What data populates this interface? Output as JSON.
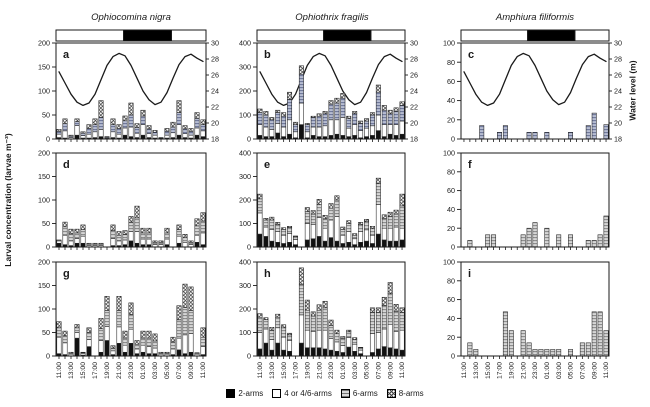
{
  "figure": {
    "y_axis_label": "Larval concentration (larvae m⁻³)",
    "right_axis_label": "Water level (m)",
    "columns": [
      {
        "title": "Ophiocomina nigra"
      },
      {
        "title": "Ophiothrix fragilis"
      },
      {
        "title": "Amphiura filiformis"
      }
    ],
    "legend": [
      {
        "key": "two",
        "label": "2-arms"
      },
      {
        "key": "four",
        "label": "4 or 4/6-arms"
      },
      {
        "key": "six",
        "label": "6-arms"
      },
      {
        "key": "eight",
        "label": "8-arms"
      }
    ]
  },
  "colors": {
    "axis": "#1a1a1a",
    "bar_stroke": "#222222",
    "two_fill": "#111111",
    "four_fill": "#ffffff",
    "six_fill_top_row": "#b7bdd2",
    "six_fill": "#d7d7d7",
    "night_fill": "#000000",
    "day_fill": "#ffffff"
  },
  "chart_data": {
    "type": "bar",
    "stacked": true,
    "x_hours": 25,
    "x_tick_labels": [
      "11:00",
      "13:00",
      "15:00",
      "17:00",
      "19:00",
      "21:00",
      "23:00",
      "01:00",
      "03:00",
      "05:00",
      "07:00",
      "09:00",
      "11:00"
    ],
    "water_axis": {
      "ylim": [
        18,
        30
      ],
      "yticks": [
        18,
        20,
        22,
        24,
        26,
        28,
        30
      ],
      "label": "Water level (m)"
    },
    "water_level": [
      26.4,
      25.0,
      23.6,
      22.6,
      22.2,
      22.5,
      23.6,
      25.4,
      27.2,
      28.3,
      28.7,
      28.4,
      27.2,
      25.6,
      24.0,
      22.9,
      22.3,
      22.6,
      23.8,
      25.6,
      27.3,
      28.3,
      28.6,
      28.1,
      27.7
    ],
    "day_night": [
      {
        "phase": "day",
        "from": 0.0,
        "to": 0.45
      },
      {
        "phase": "night",
        "from": 0.45,
        "to": 0.77
      },
      {
        "phase": "day",
        "from": 0.77,
        "to": 1.0
      }
    ],
    "panels": [
      {
        "id": "a",
        "col": 0,
        "row": 0,
        "ylim": [
          0,
          200
        ],
        "yticks": [
          0,
          50,
          100,
          150,
          200
        ],
        "series": {
          "two": [
            3,
            2,
            0,
            8,
            2,
            2,
            3,
            5,
            0,
            3,
            2,
            8,
            5,
            3,
            8,
            3,
            2,
            0,
            2,
            3,
            8,
            3,
            2,
            8,
            5
          ],
          "four": [
            7,
            15,
            3,
            20,
            5,
            8,
            12,
            15,
            2,
            12,
            8,
            15,
            20,
            9,
            22,
            8,
            6,
            1,
            6,
            10,
            22,
            8,
            6,
            15,
            12
          ],
          "six": [
            6,
            15,
            3,
            8,
            5,
            12,
            15,
            25,
            2,
            15,
            12,
            15,
            25,
            12,
            18,
            10,
            6,
            1,
            8,
            12,
            25,
            10,
            8,
            20,
            13
          ],
          "eight": [
            4,
            10,
            2,
            6,
            3,
            8,
            12,
            35,
            1,
            12,
            8,
            10,
            25,
            8,
            12,
            7,
            4,
            1,
            6,
            10,
            25,
            7,
            6,
            12,
            10
          ]
        }
      },
      {
        "id": "b",
        "col": 1,
        "row": 0,
        "ylim": [
          0,
          400
        ],
        "yticks": [
          0,
          100,
          200,
          300,
          400
        ],
        "series": {
          "two": [
            15,
            10,
            10,
            25,
            10,
            20,
            5,
            60,
            5,
            15,
            10,
            10,
            15,
            20,
            15,
            10,
            15,
            5,
            10,
            15,
            35,
            10,
            20,
            15,
            20
          ],
          "four": [
            45,
            40,
            30,
            40,
            40,
            60,
            25,
            90,
            25,
            35,
            40,
            45,
            65,
            60,
            75,
            35,
            45,
            30,
            35,
            40,
            65,
            50,
            40,
            45,
            55
          ],
          "six": [
            50,
            50,
            40,
            45,
            45,
            85,
            30,
            120,
            30,
            40,
            45,
            50,
            65,
            70,
            80,
            40,
            45,
            30,
            30,
            45,
            95,
            60,
            45,
            55,
            65
          ],
          "eight": [
            15,
            15,
            10,
            10,
            15,
            30,
            10,
            35,
            5,
            5,
            10,
            10,
            15,
            20,
            20,
            10,
            10,
            10,
            10,
            10,
            30,
            20,
            15,
            15,
            15
          ]
        }
      },
      {
        "id": "c",
        "col": 2,
        "row": 0,
        "ylim": [
          0,
          100
        ],
        "yticks": [
          0,
          20,
          40,
          60,
          80,
          100
        ],
        "series": {
          "six": [
            0,
            0,
            0,
            14,
            0,
            0,
            7,
            14,
            0,
            0,
            0,
            7,
            7,
            0,
            7,
            0,
            0,
            0,
            7,
            0,
            0,
            14,
            27,
            0,
            15
          ]
        }
      },
      {
        "id": "d",
        "col": 0,
        "row": 1,
        "ylim": [
          0,
          200
        ],
        "yticks": [
          0,
          50,
          100,
          150,
          200
        ],
        "series": {
          "two": [
            8,
            5,
            3,
            8,
            8,
            0,
            0,
            0,
            0,
            3,
            3,
            5,
            13,
            8,
            5,
            5,
            0,
            0,
            5,
            0,
            8,
            0,
            0,
            10,
            5
          ],
          "four": [
            5,
            20,
            10,
            10,
            15,
            3,
            3,
            3,
            0,
            15,
            10,
            10,
            20,
            25,
            12,
            12,
            5,
            5,
            12,
            0,
            15,
            10,
            5,
            15,
            25
          ],
          "six": [
            2,
            18,
            15,
            12,
            14,
            3,
            3,
            3,
            0,
            17,
            12,
            12,
            20,
            29,
            13,
            13,
            5,
            5,
            13,
            0,
            14,
            10,
            5,
            20,
            25
          ],
          "eight": [
            0,
            10,
            10,
            8,
            10,
            2,
            2,
            2,
            0,
            12,
            8,
            8,
            12,
            25,
            10,
            10,
            3,
            3,
            10,
            0,
            10,
            7,
            3,
            15,
            18
          ]
        }
      },
      {
        "id": "e",
        "col": 1,
        "row": 1,
        "ylim": [
          0,
          400
        ],
        "yticks": [
          0,
          100,
          200,
          300,
          400
        ],
        "series": {
          "two": [
            55,
            45,
            25,
            20,
            15,
            20,
            10,
            0,
            30,
            35,
            45,
            25,
            40,
            25,
            15,
            20,
            10,
            20,
            25,
            15,
            55,
            30,
            25,
            25,
            30
          ],
          "four": [
            90,
            40,
            50,
            45,
            35,
            38,
            22,
            0,
            70,
            60,
            80,
            55,
            75,
            105,
            35,
            45,
            25,
            45,
            48,
            35,
            125,
            50,
            55,
            60,
            50
          ],
          "six": [
            60,
            30,
            40,
            30,
            25,
            25,
            12,
            0,
            50,
            45,
            55,
            40,
            50,
            70,
            25,
            35,
            15,
            30,
            35,
            28,
            90,
            42,
            50,
            55,
            95
          ],
          "eight": [
            20,
            7,
            12,
            10,
            7,
            5,
            3,
            0,
            18,
            15,
            23,
            15,
            20,
            18,
            10,
            12,
            7,
            10,
            10,
            10,
            23,
            15,
            18,
            17,
            50
          ]
        }
      },
      {
        "id": "f",
        "col": 2,
        "row": 1,
        "ylim": [
          0,
          100
        ],
        "yticks": [
          0,
          20,
          40,
          60,
          80,
          100
        ],
        "series": {
          "six": [
            0,
            7,
            0,
            0,
            13,
            13,
            0,
            0,
            0,
            0,
            13,
            20,
            26,
            0,
            20,
            0,
            13,
            0,
            13,
            0,
            0,
            7,
            7,
            13,
            33
          ]
        }
      },
      {
        "id": "g",
        "col": 0,
        "row": 2,
        "ylim": [
          0,
          200
        ],
        "yticks": [
          0,
          50,
          100,
          150,
          200
        ],
        "series": {
          "two": [
            5,
            3,
            0,
            38,
            2,
            20,
            0,
            8,
            33,
            3,
            27,
            8,
            27,
            5,
            8,
            5,
            5,
            0,
            0,
            3,
            13,
            5,
            8,
            0,
            3
          ],
          "four": [
            35,
            25,
            4,
            12,
            3,
            15,
            0,
            25,
            30,
            8,
            35,
            15,
            30,
            10,
            15,
            15,
            12,
            4,
            4,
            12,
            25,
            40,
            40,
            4,
            17
          ],
          "six": [
            20,
            15,
            2,
            10,
            2,
            15,
            0,
            25,
            34,
            6,
            35,
            15,
            31,
            10,
            15,
            18,
            15,
            2,
            2,
            15,
            39,
            58,
            49,
            2,
            20
          ],
          "eight": [
            13,
            10,
            2,
            7,
            1,
            10,
            0,
            22,
            30,
            5,
            30,
            15,
            25,
            8,
            15,
            15,
            15,
            2,
            2,
            10,
            30,
            50,
            50,
            1,
            20
          ]
        }
      },
      {
        "id": "h",
        "col": 1,
        "row": 2,
        "ylim": [
          0,
          400
        ],
        "yticks": [
          0,
          100,
          200,
          300,
          400
        ],
        "series": {
          "two": [
            30,
            55,
            25,
            55,
            25,
            20,
            0,
            55,
            35,
            35,
            35,
            30,
            25,
            20,
            15,
            38,
            20,
            10,
            0,
            15,
            30,
            40,
            35,
            30,
            25
          ],
          "four": [
            70,
            60,
            45,
            65,
            55,
            45,
            0,
            120,
            75,
            70,
            75,
            80,
            50,
            40,
            30,
            40,
            30,
            15,
            0,
            80,
            70,
            75,
            100,
            75,
            85
          ],
          "six": [
            65,
            40,
            40,
            45,
            40,
            25,
            0,
            130,
            85,
            65,
            85,
            95,
            55,
            35,
            30,
            25,
            20,
            10,
            0,
            90,
            85,
            100,
            130,
            85,
            75
          ],
          "eight": [
            15,
            8,
            12,
            13,
            13,
            7,
            0,
            70,
            43,
            18,
            23,
            28,
            23,
            15,
            8,
            7,
            8,
            2,
            0,
            20,
            20,
            35,
            48,
            30,
            20
          ]
        }
      },
      {
        "id": "i",
        "col": 2,
        "row": 2,
        "ylim": [
          0,
          100
        ],
        "yticks": [
          0,
          20,
          40,
          60,
          80,
          100
        ],
        "series": {
          "six": [
            0,
            14,
            7,
            0,
            0,
            0,
            0,
            47,
            27,
            0,
            27,
            14,
            7,
            7,
            7,
            7,
            7,
            0,
            7,
            0,
            14,
            14,
            47,
            47,
            27
          ]
        }
      }
    ]
  }
}
